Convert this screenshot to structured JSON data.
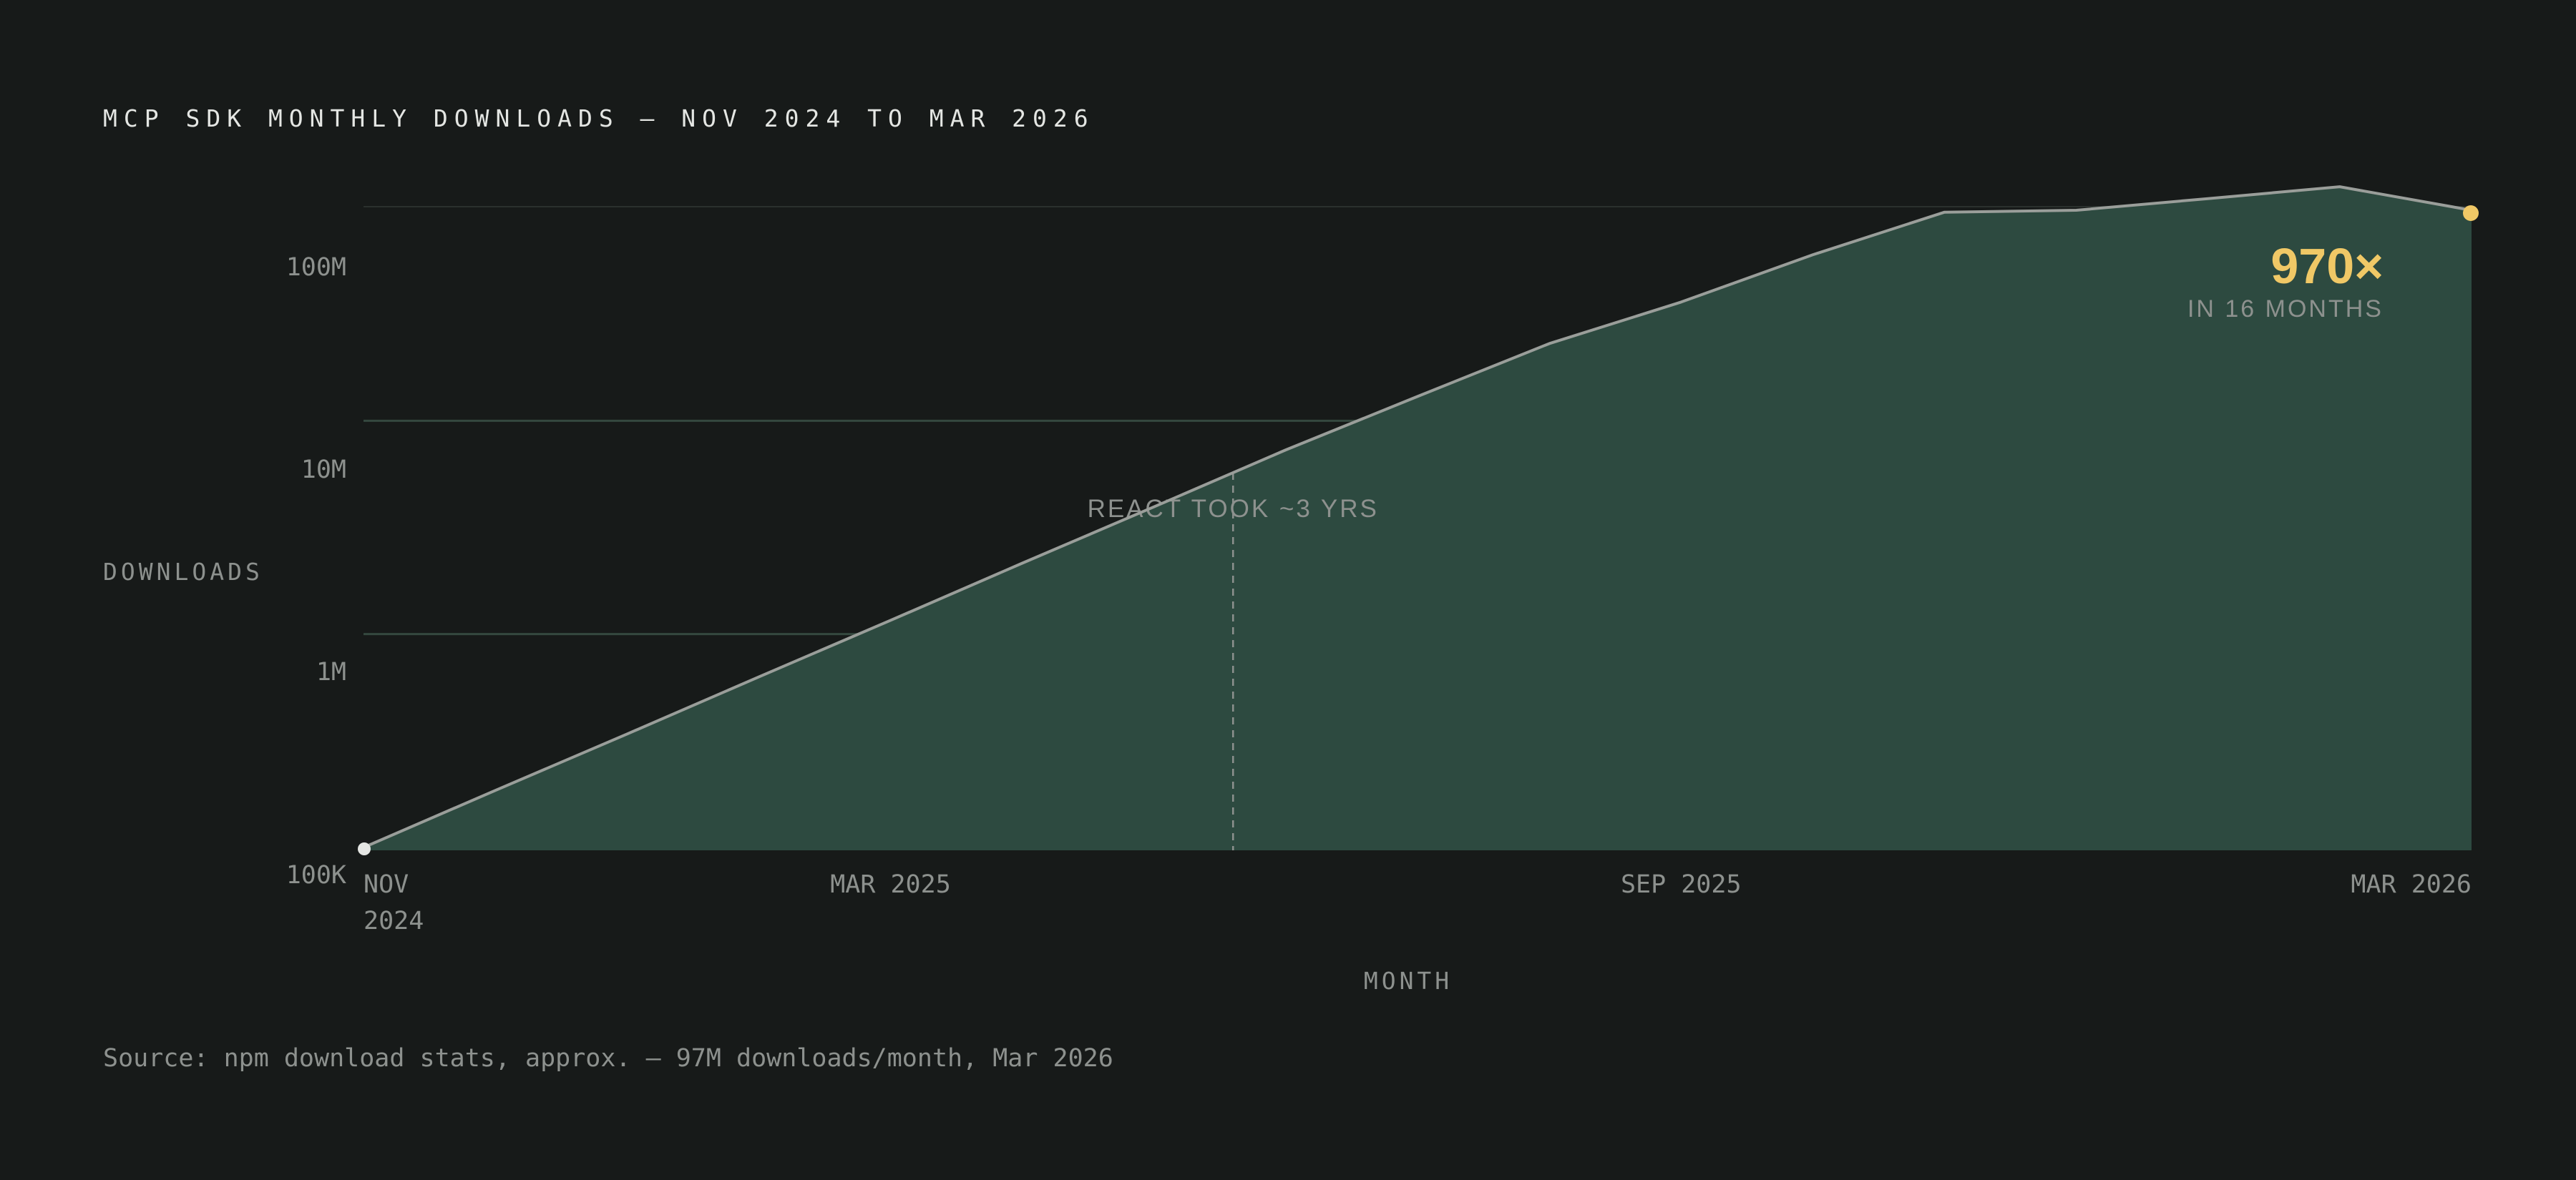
{
  "title": "MCP SDK MONTHLY DOWNLOADS — NOV 2024 TO MAR 2026",
  "source": "Source: npm download stats, approx. — 97M downloads/month, Mar 2026",
  "colors": {
    "background": "#171a19",
    "area_fill": "#2d4a40",
    "line": "#9a9e9a",
    "accent": "#f0c866",
    "gridline": "#35483f",
    "text": "#8d918e",
    "title": "#e4e6e3"
  },
  "chart_data": {
    "type": "area",
    "title": "MCP SDK MONTHLY DOWNLOADS — NOV 2024 TO MAR 2026",
    "xlabel": "MONTH",
    "ylabel": "DOWNLOADS",
    "y_scale": "log",
    "ylim": [
      100000,
      150000000
    ],
    "y_ticks": [
      {
        "value": 100000,
        "label": "100K"
      },
      {
        "value": 1000000,
        "label": "1M"
      },
      {
        "value": 10000000,
        "label": "10M"
      },
      {
        "value": 100000000,
        "label": "100M"
      }
    ],
    "x_ticks": [
      {
        "index": 0,
        "label": "NOV 2024"
      },
      {
        "index": 4,
        "label": "MAR 2025"
      },
      {
        "index": 10,
        "label": "SEP 2025"
      },
      {
        "index": 16,
        "label": "MAR 2026"
      }
    ],
    "categories": [
      "2024-11",
      "2024-12",
      "2025-01",
      "2025-02",
      "2025-03",
      "2025-04",
      "2025-05",
      "2025-06",
      "2025-07",
      "2025-08",
      "2025-09",
      "2025-10",
      "2025-11",
      "2025-12",
      "2026-01",
      "2026-02",
      "2026-03"
    ],
    "values": [
      100000,
      185000,
      340000,
      630000,
      1160000,
      2150000,
      3950000,
      7300000,
      13000000,
      23000000,
      36000000,
      60000000,
      95000000,
      97000000,
      110000000,
      125000000,
      97000000
    ],
    "grid": true,
    "annotations": [
      {
        "label": "REACT TOOK ~3 YRS",
        "x_index": 6.6,
        "style": "dashed-vertical"
      },
      {
        "label": "970×",
        "sublabel": "IN 16 MONTHS",
        "placement": "top-right"
      }
    ]
  }
}
